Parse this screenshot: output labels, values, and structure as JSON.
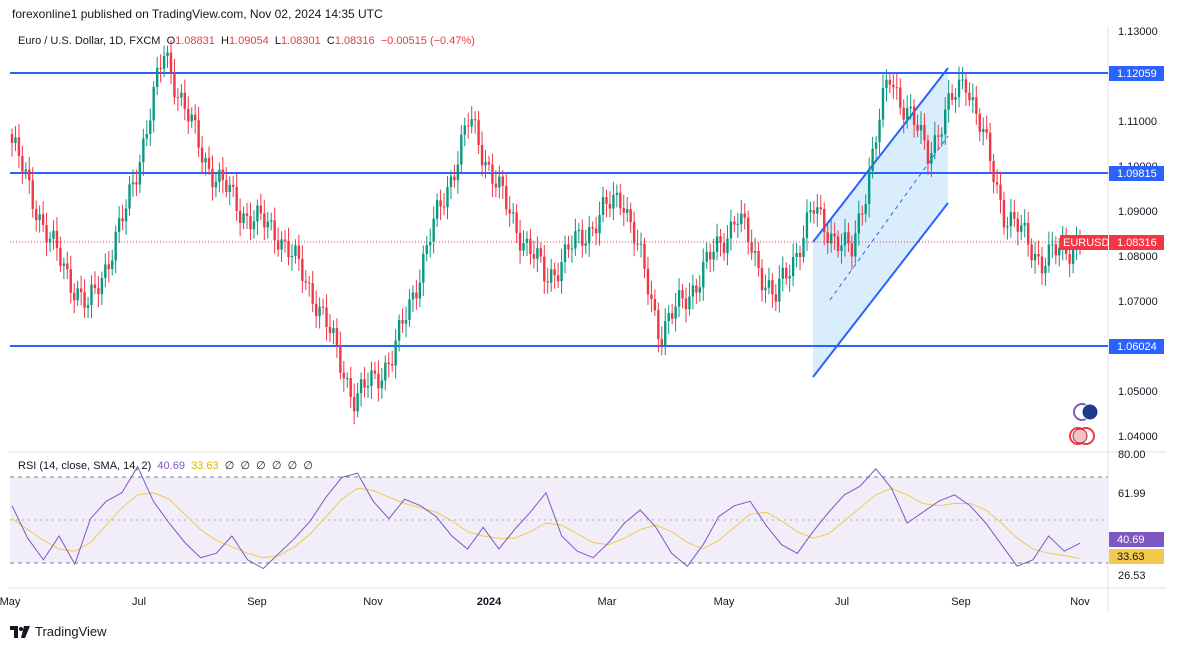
{
  "publisher": "forexonline1 published on TradingView.com, Nov 02, 2024 14:35 UTC",
  "legend": {
    "symbol": "Euro / U.S. Dollar, 1D, FXCM",
    "open_label": "O",
    "open": "1.08831",
    "high_label": "H",
    "high": "1.09054",
    "low_label": "L",
    "low": "1.08301",
    "close_label": "C",
    "close": "1.08316",
    "change": "−0.00515 (−0.47%)"
  },
  "rsi_legend": {
    "label": "RSI (14, close, SMA, 14, 2)",
    "rsi": "40.69",
    "sma": "33.63",
    "empty": [
      "∅",
      "∅",
      "∅",
      "∅",
      "∅",
      "∅"
    ]
  },
  "price_tags": {
    "symbol": "EURUSD",
    "last": "1.08316",
    "level_1": "1.12059",
    "level_2": "1.09815",
    "level_3": "1.06024"
  },
  "rsi_tags": {
    "rsi": "40.69",
    "sma": "33.63"
  },
  "footer": {
    "brand": "TradingView"
  },
  "colors": {
    "up": "#089981",
    "down": "#f23645",
    "level_line": "#2962ff",
    "channel_fill": "#bbdefb",
    "rsi": "#7e57c2",
    "sma": "#f2c94c"
  },
  "chart_data": [
    {
      "type": "candlestick",
      "title": "Euro / U.S. Dollar, 1D, FXCM",
      "y_ticks": [
        "1.13000",
        "1.11000",
        "1.10000",
        "1.09000",
        "1.08000",
        "1.07000",
        "1.05000",
        "1.04000"
      ],
      "ylim": [
        1.037,
        1.131
      ],
      "x_ticks": [
        "May",
        "Jul",
        "Sep",
        "Nov",
        "2024",
        "Mar",
        "May",
        "Jul",
        "Sep",
        "Nov"
      ],
      "horizontal_levels": [
        1.12059,
        1.09815,
        1.06024
      ],
      "last_price": 1.08316,
      "ascending_channel": {
        "start": "Jun 2024",
        "end": "late Aug 2024",
        "upper": [
          1.083,
          1.121
        ],
        "lower": [
          1.0535,
          1.092
        ]
      },
      "close_path": [
        {
          "x": "May 2023",
          "y": 1.105
        },
        {
          "x": "mid May 2023",
          "y": 1.083
        },
        {
          "x": "end May 2023",
          "y": 1.068
        },
        {
          "x": "mid Jun 2023",
          "y": 1.09
        },
        {
          "x": "mid Jul 2023",
          "y": 1.125
        },
        {
          "x": "end Jul 2023",
          "y": 1.102
        },
        {
          "x": "mid Aug 2023",
          "y": 1.09
        },
        {
          "x": "end Aug 2023",
          "y": 1.085
        },
        {
          "x": "mid Sep 2023",
          "y": 1.07
        },
        {
          "x": "early Oct 2023",
          "y": 1.048
        },
        {
          "x": "end Oct 2023",
          "y": 1.058
        },
        {
          "x": "mid Nov 2023",
          "y": 1.085
        },
        {
          "x": "end Dec 2023",
          "y": 1.11
        },
        {
          "x": "mid Jan 2024",
          "y": 1.09
        },
        {
          "x": "early Feb 2024",
          "y": 1.075
        },
        {
          "x": "early Mar 2024",
          "y": 1.085
        },
        {
          "x": "mid Mar 2024",
          "y": 1.094
        },
        {
          "x": "mid Apr 2024",
          "y": 1.063
        },
        {
          "x": "early May 2024",
          "y": 1.075
        },
        {
          "x": "early Jun 2024",
          "y": 1.089
        },
        {
          "x": "end Jun 2024",
          "y": 1.07
        },
        {
          "x": "mid Jul 2024",
          "y": 1.09
        },
        {
          "x": "early Aug 2024",
          "y": 1.08
        },
        {
          "x": "end Aug 2024",
          "y": 1.12
        },
        {
          "x": "early Sep 2024",
          "y": 1.103
        },
        {
          "x": "end Sep 2024",
          "y": 1.12
        },
        {
          "x": "mid Oct 2024",
          "y": 1.09
        },
        {
          "x": "end Oct 2024",
          "y": 1.079
        },
        {
          "x": "Nov 01 2024",
          "y": 1.0832
        }
      ]
    },
    {
      "type": "line",
      "title": "RSI (14, close, SMA, 14, 2)",
      "y_ticks": [
        "80.00",
        "61.99",
        "26.53"
      ],
      "ylim": [
        20,
        80
      ],
      "bands": [
        70,
        50,
        30
      ],
      "series": [
        {
          "name": "RSI",
          "last": 40.69,
          "values": [
            58,
            43,
            33,
            44,
            31,
            52,
            60,
            64,
            76,
            60,
            50,
            41,
            34,
            36,
            44,
            33,
            29,
            36,
            43,
            51,
            62,
            71,
            73,
            60,
            52,
            61,
            58,
            53,
            44,
            38,
            48,
            38,
            47,
            55,
            64,
            44,
            37,
            34,
            41,
            50,
            56,
            48,
            36,
            30,
            40,
            53,
            58,
            60,
            49,
            40,
            36,
            46,
            55,
            63,
            67,
            75,
            66,
            50,
            55,
            60,
            63,
            58,
            50,
            40,
            30,
            33,
            44,
            37,
            40.69
          ]
        },
        {
          "name": "SMA",
          "last": 33.63,
          "values": [
            52,
            47,
            42,
            38,
            37,
            41,
            49,
            57,
            63,
            64,
            61,
            54,
            47,
            42,
            39,
            36,
            34,
            35,
            39,
            45,
            53,
            61,
            66,
            65,
            62,
            59,
            57,
            55,
            51,
            46,
            44,
            43,
            43,
            46,
            50,
            49,
            45,
            41,
            40,
            43,
            47,
            49,
            46,
            41,
            38,
            42,
            48,
            54,
            55,
            51,
            46,
            43,
            45,
            51,
            57,
            63,
            66,
            63,
            59,
            58,
            59,
            59,
            56,
            50,
            43,
            38,
            36,
            35,
            33.63
          ]
        }
      ]
    }
  ]
}
